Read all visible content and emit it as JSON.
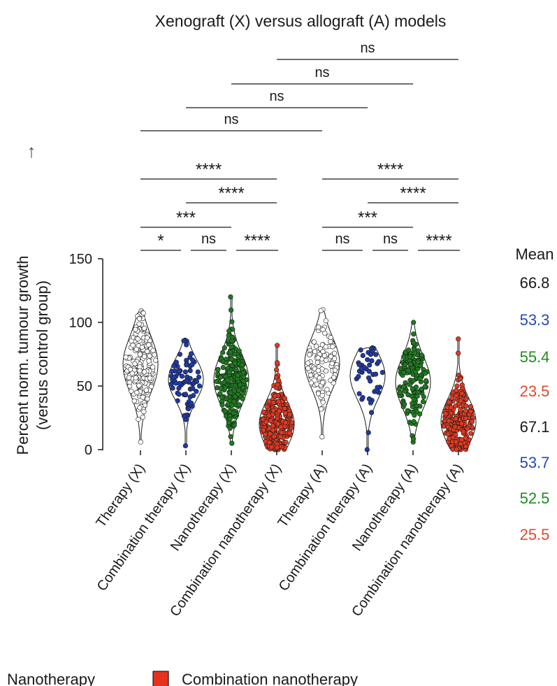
{
  "chart_data": {
    "type": "violin",
    "title": "Xenograft (X) versus allograft (A) models",
    "ylabel_line1": "Percent norm. tumour growth",
    "ylabel_line2": "(versus control group)",
    "ylim": [
      0,
      150
    ],
    "yticks": [
      "0",
      "50",
      "100",
      "150"
    ],
    "arrow_symbol": "↑",
    "categories": [
      {
        "label": "Therapy (X)",
        "color": "#ffffff",
        "mean": "66.8",
        "mean_color": "#1a1a1a",
        "n": 190,
        "center": 67,
        "spread": 22,
        "min": 6,
        "max": 109
      },
      {
        "label": "Combination therapy (X)",
        "color": "#1f3aa5",
        "mean": "53.3",
        "mean_color": "#2449b8",
        "n": 75,
        "center": 55,
        "spread": 16,
        "min": 3,
        "max": 86
      },
      {
        "label": "Nanotherapy (X)",
        "color": "#1e7a1e",
        "mean": "55.4",
        "mean_color": "#1e8c1e",
        "n": 230,
        "center": 55,
        "spread": 20,
        "min": 5,
        "max": 120
      },
      {
        "label": "Combination nanotherapy (X)",
        "color": "#e03a22",
        "mean": "23.5",
        "mean_color": "#e04a2c",
        "n": 260,
        "center": 20,
        "spread": 18,
        "min": 0,
        "max": 82
      },
      {
        "label": "Therapy (A)",
        "color": "#ffffff",
        "mean": "67.1",
        "mean_color": "#1a1a1a",
        "n": 110,
        "center": 68,
        "spread": 20,
        "min": 10,
        "max": 110
      },
      {
        "label": "Combination therapy (A)",
        "color": "#1f3aa5",
        "mean": "53.7",
        "mean_color": "#2449b8",
        "n": 45,
        "center": 58,
        "spread": 18,
        "min": 0,
        "max": 80
      },
      {
        "label": "Nanotherapy (A)",
        "color": "#1e7a1e",
        "mean": "52.5",
        "mean_color": "#1e8c1e",
        "n": 150,
        "center": 53,
        "spread": 20,
        "min": 6,
        "max": 100
      },
      {
        "label": "Combination nanotherapy (A)",
        "color": "#e03a22",
        "mean": "25.5",
        "mean_color": "#e04a2c",
        "n": 200,
        "center": 22,
        "spread": 18,
        "min": 0,
        "max": 87
      }
    ],
    "mean_header": "Mean",
    "significance": [
      {
        "from": 0,
        "to": 1,
        "label": "*",
        "level": 0
      },
      {
        "from": 1,
        "to": 2,
        "label": "ns",
        "level": 0
      },
      {
        "from": 2,
        "to": 3,
        "label": "****",
        "level": 0
      },
      {
        "from": 4,
        "to": 5,
        "label": "ns",
        "level": 0
      },
      {
        "from": 5,
        "to": 6,
        "label": "ns",
        "level": 0
      },
      {
        "from": 6,
        "to": 7,
        "label": "****",
        "level": 0
      },
      {
        "from": 0,
        "to": 2,
        "label": "***",
        "level": 1
      },
      {
        "from": 4,
        "to": 6,
        "label": "***",
        "level": 1
      },
      {
        "from": 1,
        "to": 3,
        "label": "****",
        "level": 2
      },
      {
        "from": 5,
        "to": 7,
        "label": "****",
        "level": 2
      },
      {
        "from": 0,
        "to": 3,
        "label": "****",
        "level": 3
      },
      {
        "from": 4,
        "to": 7,
        "label": "****",
        "level": 3
      },
      {
        "from": 0,
        "to": 4,
        "label": "ns",
        "level": 4
      },
      {
        "from": 1,
        "to": 5,
        "label": "ns",
        "level": 5
      },
      {
        "from": 2,
        "to": 6,
        "label": "ns",
        "level": 6
      },
      {
        "from": 3,
        "to": 7,
        "label": "ns",
        "level": 7
      }
    ],
    "legend": [
      {
        "label": "Nanotherapy",
        "color": "#1e7a1e",
        "show_swatch": false
      },
      {
        "label": "Combination nanotherapy",
        "color": "#e8301c",
        "show_swatch": true
      }
    ]
  }
}
